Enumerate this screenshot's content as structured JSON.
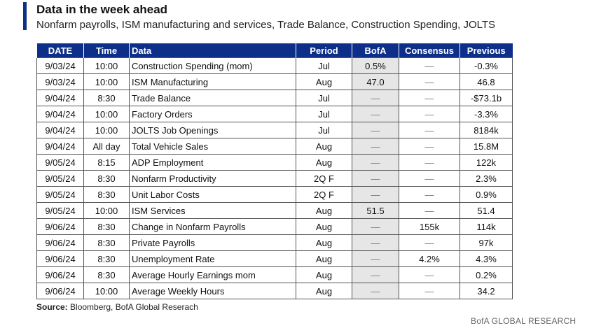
{
  "header": {
    "title": "Data in the week ahead",
    "subtitle": "Nonfarm payrolls, ISM manufacturing and services, Trade Balance, Construction Spending, JOLTS",
    "accent_color": "#0d2f8a"
  },
  "table": {
    "columns": [
      "DATE",
      "Time",
      "Data",
      "Period",
      "BofA",
      "Consensus",
      "Previous"
    ],
    "rows": [
      [
        "9/03/24",
        "10:00",
        "Construction Spending (mom)",
        "Jul",
        "0.5%",
        "—",
        "-0.3%"
      ],
      [
        "9/03/24",
        "10:00",
        "ISM Manufacturing",
        "Aug",
        "47.0",
        "—",
        "46.8"
      ],
      [
        "9/04/24",
        "8:30",
        "Trade Balance",
        "Jul",
        "—",
        "—",
        "-$73.1b"
      ],
      [
        "9/04/24",
        "10:00",
        "Factory Orders",
        "Jul",
        "—",
        "—",
        "-3.3%"
      ],
      [
        "9/04/24",
        "10:00",
        "JOLTS Job Openings",
        "Jul",
        "—",
        "—",
        "8184k"
      ],
      [
        "9/04/24",
        "All day",
        "Total Vehicle Sales",
        "Aug",
        "—",
        "—",
        "15.8M"
      ],
      [
        "9/05/24",
        "8:15",
        "ADP Employment",
        "Aug",
        "—",
        "—",
        "122k"
      ],
      [
        "9/05/24",
        "8:30",
        "Nonfarm Productivity",
        "2Q F",
        "—",
        "—",
        "2.3%"
      ],
      [
        "9/05/24",
        "8:30",
        "Unit Labor Costs",
        "2Q F",
        "—",
        "—",
        "0.9%"
      ],
      [
        "9/05/24",
        "10:00",
        "ISM Services",
        "Aug",
        "51.5",
        "—",
        "51.4"
      ],
      [
        "9/06/24",
        "8:30",
        "Change in Nonfarm Payrolls",
        "Aug",
        "—",
        "155k",
        "114k"
      ],
      [
        "9/06/24",
        "8:30",
        "Private Payrolls",
        "Aug",
        "—",
        "—",
        "97k"
      ],
      [
        "9/06/24",
        "8:30",
        "Unemployment Rate",
        "Aug",
        "—",
        "4.2%",
        "4.3%"
      ],
      [
        "9/06/24",
        "8:30",
        "Average Hourly Earnings mom",
        "Aug",
        "—",
        "—",
        "0.2%"
      ],
      [
        "9/06/24",
        "10:00",
        "Average Weekly Hours",
        "Aug",
        "—",
        "—",
        "34.2"
      ]
    ]
  },
  "footer": {
    "source_label": "Source:",
    "source_text": " Bloomberg, BofA Global Reserach",
    "brand": "BofA GLOBAL RESEARCH"
  }
}
